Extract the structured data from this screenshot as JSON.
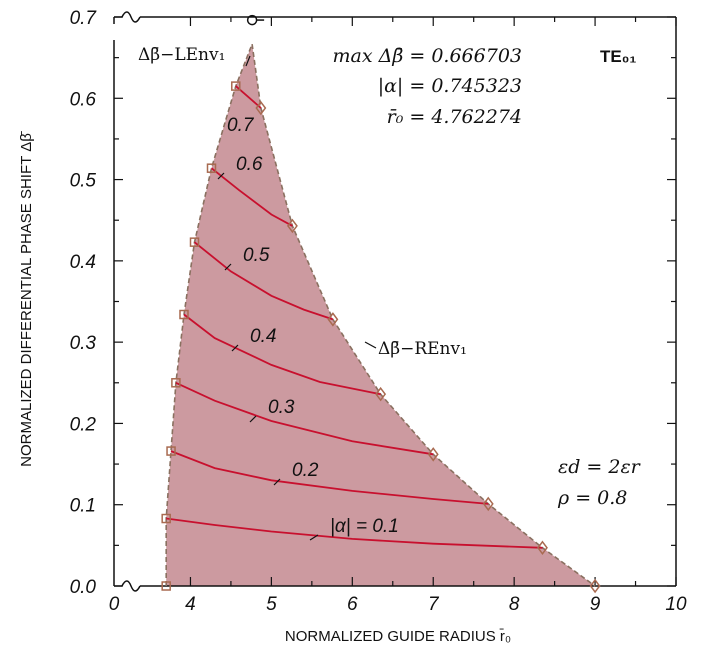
{
  "chart_data": {
    "type": "line",
    "xlabel": "NORMALIZED GUIDE RADIUS  r̄₀",
    "ylabel": "NORMALIZED DIFFERENTIAL PHASE SHIFT  Δβ̄",
    "xlim": [
      0,
      10
    ],
    "ylim": [
      0,
      0.7
    ],
    "x_ticks": [
      "0",
      "4",
      "5",
      "6",
      "7",
      "8",
      "9",
      "10"
    ],
    "y_ticks": [
      "0.0",
      "0.1",
      "0.2",
      "0.3",
      "0.4",
      "0.5",
      "0.6",
      "0.7"
    ],
    "mode_badge": "TE₀₁",
    "max_text": [
      "max Δβ̄ = 0.666703",
      "|α| = 0.745323",
      "r̄₀ = 4.762274"
    ],
    "params_text": [
      "εd = 2εr",
      "ρ = 0.8"
    ],
    "left_envelope_label": "Δβ̄−LEnv₁",
    "right_envelope_label": "Δβ̄−REnv₁",
    "colors": {
      "fill": "#cc9aa0",
      "curve": "#c8102e",
      "envelope": "#8a7060",
      "marker": "#a86a50"
    },
    "left_envelope": [
      {
        "x": 3.7,
        "y": 0.0
      },
      {
        "x": 3.7,
        "y": 0.083
      },
      {
        "x": 3.76,
        "y": 0.166
      },
      {
        "x": 3.82,
        "y": 0.25
      },
      {
        "x": 3.92,
        "y": 0.334
      },
      {
        "x": 4.05,
        "y": 0.423
      },
      {
        "x": 4.26,
        "y": 0.514
      },
      {
        "x": 4.56,
        "y": 0.615
      },
      {
        "x": 4.762,
        "y": 0.6667
      }
    ],
    "right_envelope": [
      {
        "x": 4.762,
        "y": 0.6667
      },
      {
        "x": 4.87,
        "y": 0.588
      },
      {
        "x": 5.26,
        "y": 0.443
      },
      {
        "x": 5.76,
        "y": 0.328
      },
      {
        "x": 6.35,
        "y": 0.236
      },
      {
        "x": 7.0,
        "y": 0.162
      },
      {
        "x": 7.68,
        "y": 0.101
      },
      {
        "x": 8.35,
        "y": 0.047
      },
      {
        "x": 9.0,
        "y": 0.0
      }
    ],
    "series": [
      {
        "name": "|α| = 0.1",
        "label": "|α| = 0.1",
        "lx": 8.4,
        "ly": 0.042,
        "points": [
          {
            "x": 3.7,
            "y": 0.083
          },
          {
            "x": 4.3,
            "y": 0.075
          },
          {
            "x": 5.0,
            "y": 0.067
          },
          {
            "x": 6.0,
            "y": 0.058
          },
          {
            "x": 7.0,
            "y": 0.052
          },
          {
            "x": 8.35,
            "y": 0.047
          }
        ]
      },
      {
        "name": "0.2",
        "label": "0.2",
        "lx": 8.4,
        "ly": 0.138,
        "points": [
          {
            "x": 3.76,
            "y": 0.166
          },
          {
            "x": 4.3,
            "y": 0.145
          },
          {
            "x": 5.0,
            "y": 0.13
          },
          {
            "x": 6.0,
            "y": 0.117
          },
          {
            "x": 7.0,
            "y": 0.107
          },
          {
            "x": 7.68,
            "y": 0.101
          }
        ]
      },
      {
        "name": "0.3",
        "label": "0.3",
        "lx": 8.4,
        "ly": 0.212,
        "points": [
          {
            "x": 3.82,
            "y": 0.25
          },
          {
            "x": 4.3,
            "y": 0.228
          },
          {
            "x": 5.0,
            "y": 0.203
          },
          {
            "x": 6.0,
            "y": 0.178
          },
          {
            "x": 7.0,
            "y": 0.162
          }
        ]
      },
      {
        "name": "0.4",
        "label": "0.4",
        "lx": 8.4,
        "ly": 0.307,
        "points": [
          {
            "x": 3.92,
            "y": 0.334
          },
          {
            "x": 4.3,
            "y": 0.305
          },
          {
            "x": 5.0,
            "y": 0.272
          },
          {
            "x": 5.6,
            "y": 0.251
          },
          {
            "x": 6.35,
            "y": 0.236
          }
        ]
      },
      {
        "name": "0.5",
        "label": "0.5",
        "lx": 8.4,
        "ly": 0.395,
        "points": [
          {
            "x": 4.05,
            "y": 0.423
          },
          {
            "x": 4.5,
            "y": 0.387
          },
          {
            "x": 5.0,
            "y": 0.357
          },
          {
            "x": 5.4,
            "y": 0.34
          },
          {
            "x": 5.76,
            "y": 0.328
          }
        ]
      },
      {
        "name": "0.6",
        "label": "0.6",
        "lx": 8.4,
        "ly": 0.52,
        "points": [
          {
            "x": 4.26,
            "y": 0.514
          },
          {
            "x": 4.6,
            "y": 0.487
          },
          {
            "x": 5.0,
            "y": 0.457
          },
          {
            "x": 5.26,
            "y": 0.443
          }
        ]
      },
      {
        "name": "0.7",
        "label": "0.7",
        "lx": 8.4,
        "ly": 0.57,
        "points": [
          {
            "x": 4.56,
            "y": 0.615
          },
          {
            "x": 4.87,
            "y": 0.588
          }
        ]
      }
    ]
  }
}
